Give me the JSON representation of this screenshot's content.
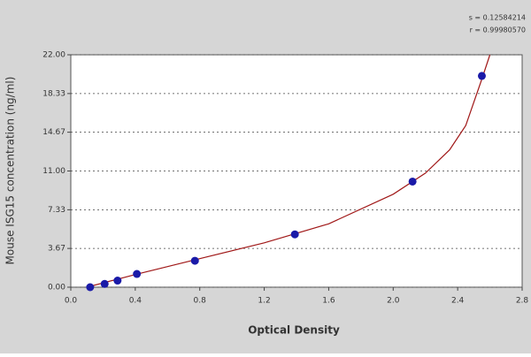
{
  "chart_data": {
    "type": "scatter",
    "x_label": "Optical Density",
    "y_label": "Mouse ISG15 concentration (ng/ml)",
    "annotations": [
      "s = 0.12584214",
      "r = 0.99980570"
    ],
    "x": [
      0.12,
      0.21,
      0.29,
      0.41,
      0.77,
      1.39,
      2.12,
      2.55
    ],
    "values": [
      0,
      0.31,
      0.625,
      1.25,
      2.5,
      5,
      10,
      20
    ],
    "color": "#1a1aa8",
    "curve": {
      "color": "#a01818",
      "x": [
        0.1,
        0.4,
        0.8,
        1.2,
        1.6,
        2.0,
        2.2,
        2.35,
        2.45,
        2.55,
        2.6
      ],
      "y": [
        0,
        1.2,
        2.7,
        4.2,
        6.0,
        8.8,
        10.8,
        13.0,
        15.3,
        19.7,
        22
      ]
    },
    "xlim": [
      0,
      2.8
    ],
    "xticks": [
      {
        "value": 0,
        "label": "0.0"
      },
      {
        "value": 0.4,
        "label": "0.4"
      },
      {
        "value": 0.8,
        "label": "0.8"
      },
      {
        "value": 1.2,
        "label": "1.2"
      },
      {
        "value": 1.6,
        "label": "1.6"
      },
      {
        "value": 2,
        "label": "2.0"
      },
      {
        "value": 2.4,
        "label": "2.4"
      },
      {
        "value": 2.8,
        "label": "2.8"
      }
    ],
    "ylim": [
      0,
      22
    ],
    "yticks": [
      {
        "value": 0,
        "label": "0.00"
      },
      {
        "value": 3.67,
        "label": "3.67"
      },
      {
        "value": 7.33,
        "label": "7.33"
      },
      {
        "value": 11,
        "label": "11.00"
      },
      {
        "value": 14.67,
        "label": "14.67"
      },
      {
        "value": 18.33,
        "label": "18.33"
      },
      {
        "value": 22,
        "label": "22.00"
      }
    ],
    "grid": true
  }
}
